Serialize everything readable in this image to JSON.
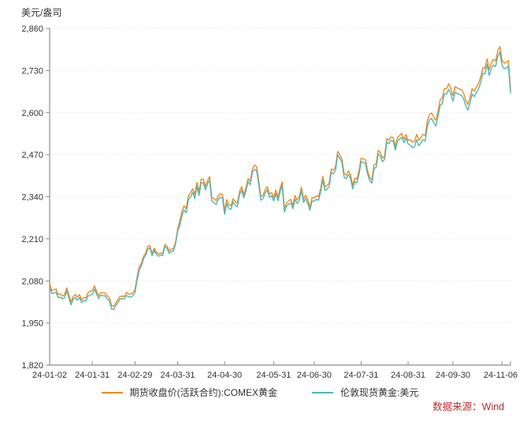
{
  "footer": {
    "source": "数据来源：Wind",
    "source_color": "#C02C2C"
  },
  "chart_data": {
    "type": "line",
    "title": "",
    "xlabel": "",
    "ylabel": "美元/盎司",
    "ylim": [
      1820,
      2860
    ],
    "grid": "horizontal-dotted",
    "grid_color": "#DCDCDC",
    "axis_color": "#8C8C8C",
    "tick_text_color": "#333333",
    "legend_position": "bottom",
    "x_unit": "trading-day-index (24-01-02 .. 24-11-06)",
    "yticks": [
      {
        "value": 1820,
        "label": "1,820"
      },
      {
        "value": 1950,
        "label": "1,950"
      },
      {
        "value": 2080,
        "label": "2,080"
      },
      {
        "value": 2210,
        "label": "2,210"
      },
      {
        "value": 2340,
        "label": "2,340"
      },
      {
        "value": 2470,
        "label": "2,470"
      },
      {
        "value": 2600,
        "label": "2,600"
      },
      {
        "value": 2730,
        "label": "2,730"
      },
      {
        "value": 2860,
        "label": "2,860"
      }
    ],
    "xticks": [
      {
        "pos": 0,
        "label": "24-01-02"
      },
      {
        "pos": 20,
        "label": "24-01-31"
      },
      {
        "pos": 40,
        "label": "24-02-29"
      },
      {
        "pos": 60,
        "label": "24-03-31"
      },
      {
        "pos": 82,
        "label": "24-04-30"
      },
      {
        "pos": 105,
        "label": "24-05-31"
      },
      {
        "pos": 124,
        "label": "24-06-30"
      },
      {
        "pos": 146,
        "label": "24-07-31"
      },
      {
        "pos": 168,
        "label": "24-08-31"
      },
      {
        "pos": 189,
        "label": "24-09-30"
      },
      {
        "pos": 212,
        "label": ""
      },
      {
        "pos": 216,
        "label": "24-11-06"
      }
    ],
    "series": [
      {
        "name": "期货收盘价(活跃合约):COMEX黄金",
        "color": "#ED8A1F",
        "values": [
          2073,
          2050,
          2053,
          2055,
          2038,
          2040,
          2033,
          2038,
          2059,
          2037,
          2015,
          2031,
          2038,
          2030,
          2038,
          2022,
          2029,
          2027,
          2044,
          2048,
          2050,
          2065,
          2048,
          2034,
          2044,
          2043,
          2043,
          2033,
          2029,
          2004,
          2002,
          2012,
          2022,
          2032,
          2033,
          2032,
          2044,
          2040,
          2039,
          2043,
          2053,
          2092,
          2123,
          2136,
          2156,
          2166,
          2186,
          2189,
          2164,
          2181,
          2169,
          2163,
          2166,
          2164,
          2193,
          2188,
          2172,
          2178,
          2179,
          2200,
          2240,
          2265,
          2294,
          2312,
          2303,
          2343,
          2352,
          2365,
          2346,
          2384,
          2356,
          2394,
          2394,
          2372,
          2390,
          2402,
          2338,
          2334,
          2328,
          2343,
          2349,
          2346,
          2297,
          2331,
          2315,
          2312,
          2334,
          2325,
          2320,
          2356,
          2371,
          2346,
          2368,
          2396,
          2387,
          2425,
          2438,
          2433,
          2389,
          2339,
          2345,
          2361,
          2371,
          2348,
          2353,
          2337,
          2361,
          2338,
          2366,
          2386,
          2304,
          2320,
          2327,
          2332,
          2313,
          2344,
          2330,
          2340,
          2370,
          2332,
          2345,
          2330,
          2308,
          2337,
          2336,
          2343,
          2340,
          2366,
          2403,
          2370,
          2375,
          2382,
          2426,
          2422,
          2433,
          2480,
          2469,
          2456,
          2411,
          2407,
          2420,
          2408,
          2375,
          2398,
          2394,
          2421,
          2459,
          2457,
          2454,
          2421,
          2400,
          2392,
          2438,
          2442,
          2483,
          2476,
          2459,
          2467,
          2519,
          2515,
          2525,
          2523,
          2495,
          2523,
          2529,
          2535,
          2518,
          2532,
          2514,
          2516,
          2509,
          2511,
          2533,
          2514,
          2523,
          2533,
          2529,
          2575,
          2594,
          2599,
          2586,
          2576,
          2603,
          2639,
          2645,
          2674,
          2674,
          2689,
          2675,
          2652,
          2680,
          2676,
          2673,
          2670,
          2660,
          2638,
          2625,
          2646,
          2674,
          2666,
          2679,
          2690,
          2710,
          2738,
          2737,
          2766,
          2732,
          2753,
          2764,
          2759,
          2791,
          2804,
          2761,
          2753,
          2754,
          2761,
          2669
        ]
      },
      {
        "name": "伦敦现货黄金:美元",
        "color": "#52B6B4",
        "values": [
          2059,
          2041,
          2043,
          2045,
          2028,
          2030,
          2024,
          2028,
          2049,
          2028,
          2006,
          2023,
          2029,
          2021,
          2029,
          2013,
          2020,
          2018,
          2033,
          2037,
          2039,
          2055,
          2039,
          2025,
          2036,
          2034,
          2034,
          2024,
          2020,
          1993,
          1992,
          2004,
          2013,
          2024,
          2025,
          2024,
          2035,
          2031,
          2030,
          2034,
          2044,
          2083,
          2114,
          2127,
          2148,
          2159,
          2178,
          2182,
          2158,
          2174,
          2162,
          2156,
          2160,
          2158,
          2186,
          2181,
          2165,
          2171,
          2172,
          2194,
          2233,
          2251,
          2281,
          2299,
          2290,
          2330,
          2339,
          2354,
          2334,
          2372,
          2344,
          2383,
          2383,
          2361,
          2379,
          2392,
          2327,
          2322,
          2316,
          2332,
          2338,
          2335,
          2286,
          2319,
          2304,
          2301,
          2324,
          2314,
          2309,
          2346,
          2360,
          2336,
          2358,
          2386,
          2377,
          2415,
          2425,
          2421,
          2378,
          2329,
          2334,
          2351,
          2361,
          2338,
          2343,
          2327,
          2350,
          2327,
          2355,
          2376,
          2293,
          2310,
          2317,
          2321,
          2303,
          2333,
          2319,
          2329,
          2360,
          2322,
          2334,
          2319,
          2298,
          2327,
          2326,
          2332,
          2329,
          2355,
          2392,
          2359,
          2364,
          2371,
          2415,
          2411,
          2422,
          2469,
          2458,
          2445,
          2400,
          2396,
          2409,
          2397,
          2364,
          2387,
          2383,
          2410,
          2448,
          2446,
          2443,
          2410,
          2390,
          2382,
          2427,
          2431,
          2472,
          2465,
          2448,
          2456,
          2508,
          2504,
          2514,
          2512,
          2484,
          2512,
          2518,
          2524,
          2507,
          2521,
          2503,
          2499,
          2492,
          2494,
          2516,
          2497,
          2506,
          2516,
          2512,
          2558,
          2577,
          2582,
          2569,
          2559,
          2586,
          2622,
          2628,
          2657,
          2657,
          2672,
          2658,
          2635,
          2663,
          2659,
          2656,
          2653,
          2643,
          2621,
          2608,
          2629,
          2657,
          2649,
          2662,
          2673,
          2693,
          2721,
          2720,
          2749,
          2715,
          2736,
          2747,
          2742,
          2774,
          2787,
          2744,
          2736,
          2737,
          2744,
          2660
        ]
      }
    ]
  }
}
